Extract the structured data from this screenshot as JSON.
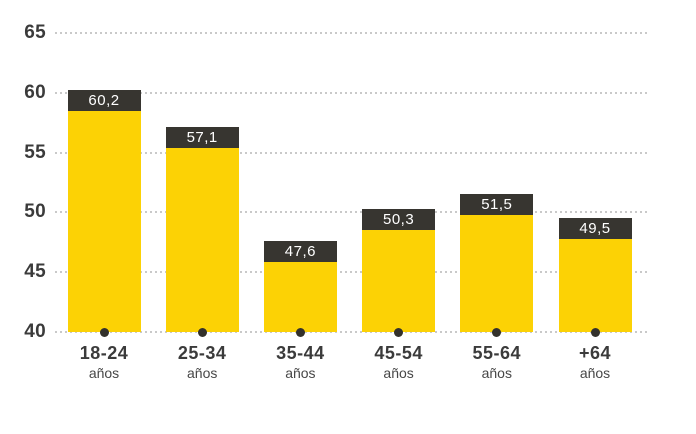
{
  "chart_data": {
    "type": "bar",
    "title": "",
    "xlabel": "",
    "ylabel": "",
    "categories": [
      "18-24",
      "25-34",
      "35-44",
      "45-54",
      "55-64",
      "+64"
    ],
    "category_unit": "años",
    "values": [
      60.2,
      57.1,
      47.6,
      50.3,
      51.5,
      49.5
    ],
    "value_labels": [
      "60,2",
      "57,1",
      "47,6",
      "50,3",
      "51,5",
      "49,5"
    ],
    "yticks": [
      "40",
      "45",
      "50",
      "55",
      "60",
      "65"
    ],
    "ylim": [
      40,
      65
    ],
    "grid": "horizontal-dotted",
    "legend": "none",
    "colors": {
      "bar_fill": "#fcd205",
      "value_band": "#373530",
      "value_text": "#ffffff",
      "axis_text": "#3b3b3b",
      "unit_text": "#474747",
      "gridline": "#c9c9c9",
      "baseline_dot": "#33312c"
    }
  }
}
